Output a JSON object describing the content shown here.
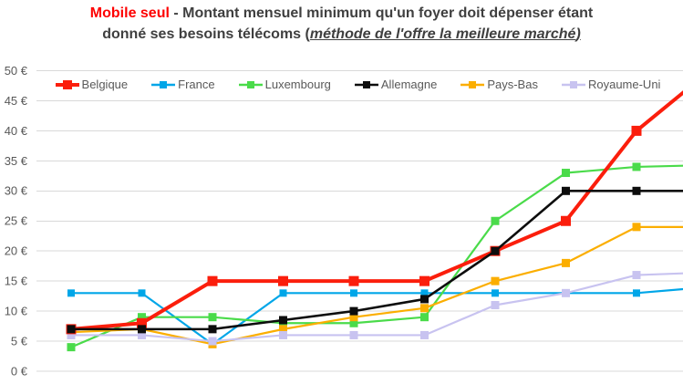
{
  "title": {
    "highlight": "Mobile seul",
    "line1_rest": " - Montant mensuel minimum qu'un foyer doit dépenser étant",
    "line2_pre": "donné ses besoins télécoms (",
    "line2_italic": "méthode de l'offre la meilleure marché",
    "line2_post": ")",
    "highlight_color": "#fe0000",
    "text_color": "#3f3f3f"
  },
  "colors": {
    "grid": "#d9d9d9",
    "axis_text": "#595959",
    "background": "#ffffff"
  },
  "chart_data": {
    "type": "line",
    "title": "Mobile seul - Montant mensuel minimum qu'un foyer doit dépenser étant donné ses besoins télécoms (méthode de l'offre la meilleure marché)",
    "ylim": [
      0,
      50
    ],
    "y_tick_step": 5,
    "y_tick_labels": [
      "0 €",
      "5 €",
      "10 €",
      "15 €",
      "20 €",
      "25 €",
      "30 €",
      "35 €",
      "40 €",
      "45 €",
      "50 €"
    ],
    "x_tick_labels": [],
    "x_axis_note": "x-axis labels cropped out of the visible image; 9 data points visible, series continue past right edge",
    "grid": true,
    "legend_position": "top",
    "series": [
      {
        "name": "Belgique",
        "color": "#fb1e0c",
        "values": [
          7,
          8,
          15,
          15,
          15,
          15,
          20,
          25,
          40
        ],
        "edge_value": 46.7
      },
      {
        "name": "France",
        "color": "#00a6e8",
        "values": [
          13,
          13,
          4.5,
          13,
          13,
          13,
          13,
          13,
          13
        ],
        "edge_value": 13.7
      },
      {
        "name": "Luxembourg",
        "color": "#4adb4a",
        "values": [
          4,
          9,
          9,
          8,
          8,
          9,
          25,
          33,
          34
        ],
        "edge_value": 34.2
      },
      {
        "name": "Allemagne",
        "color": "#0d0d0d",
        "values": [
          7,
          7,
          7,
          8.5,
          10,
          12,
          20,
          30,
          30
        ],
        "edge_value": 30
      },
      {
        "name": "Pays-Bas",
        "color": "#fbae00",
        "values": [
          6.5,
          7,
          4.5,
          7,
          9,
          10.5,
          15,
          18,
          24
        ],
        "edge_value": 24
      },
      {
        "name": "Royaume-Uni",
        "color": "#c8c3f0",
        "values": [
          6,
          6,
          5,
          6,
          6,
          6,
          11,
          13,
          16
        ],
        "edge_value": 16.3
      }
    ]
  }
}
